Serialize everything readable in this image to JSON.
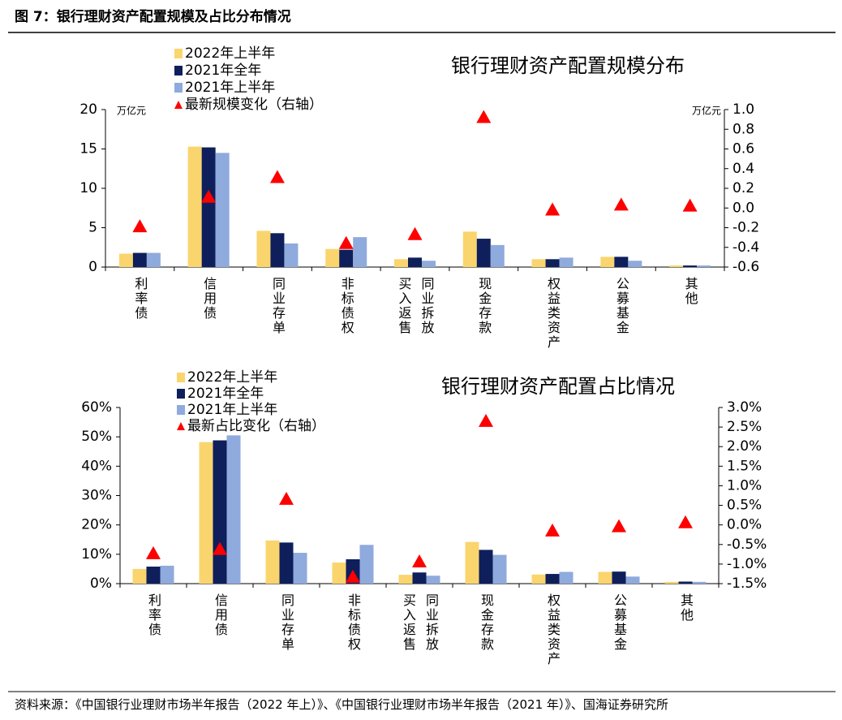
{
  "header": {
    "title": "图 7：银行理财资产配置规模及占比分布情况"
  },
  "chart_data": [
    {
      "type": "bar",
      "title": "银行理财资产配置规模分布",
      "ylabel": "万亿元",
      "y2label": "万亿元",
      "categories": [
        "利率债",
        "信用债",
        "同业存单",
        "非标债权",
        "买入返售 同业拆放",
        "现金存款",
        "权益类资产",
        "公募基金",
        "其他"
      ],
      "series": [
        {
          "name": "2022年上半年",
          "color": "#FAD56E",
          "values": [
            1.7,
            15.3,
            4.6,
            2.3,
            1.0,
            4.5,
            1.0,
            1.3,
            0.2
          ]
        },
        {
          "name": "2021年全年",
          "color": "#0E1F5B",
          "values": [
            1.8,
            15.2,
            4.3,
            2.2,
            1.2,
            3.6,
            1.0,
            1.3,
            0.2
          ]
        },
        {
          "name": "2021年上半年",
          "color": "#8FAADC",
          "values": [
            1.8,
            14.5,
            3.0,
            3.8,
            0.8,
            2.8,
            1.2,
            0.8,
            0.2
          ]
        },
        {
          "name": "最新规模变化（右轴）",
          "color": "#FF0000",
          "marker": "triangle",
          "axis": "y2",
          "values": [
            -0.18,
            0.12,
            0.32,
            -0.35,
            -0.26,
            0.93,
            -0.01,
            0.04,
            0.03
          ]
        }
      ],
      "ylim": [
        0,
        20
      ],
      "yticks": [
        0,
        5,
        10,
        15,
        20
      ],
      "y2lim": [
        -0.6,
        1.0
      ],
      "y2ticks": [
        -0.6,
        -0.4,
        -0.2,
        {
          "value": 0,
          "label": "0.0"
        },
        0.2,
        0.4,
        0.6,
        0.8,
        {
          "value": 1,
          "label": "1.0"
        }
      ]
    },
    {
      "type": "bar",
      "title": "银行理财资产配置占比情况",
      "categories": [
        "利率债",
        "信用债",
        "同业存单",
        "非标债权",
        "买入返售 同业拆放",
        "现金存款",
        "权益类资产",
        "公募基金",
        "其他"
      ],
      "series": [
        {
          "name": "2022年上半年",
          "color": "#FAD56E",
          "values": [
            5.0,
            48.2,
            14.7,
            7.2,
            3.0,
            14.2,
            3.1,
            4.0,
            0.6
          ]
        },
        {
          "name": "2021年全年",
          "color": "#0E1F5B",
          "values": [
            5.8,
            48.8,
            14.0,
            8.3,
            3.8,
            11.5,
            3.3,
            4.1,
            0.7
          ]
        },
        {
          "name": "2021年上半年",
          "color": "#8FAADC",
          "values": [
            6.1,
            50.5,
            10.5,
            13.2,
            2.7,
            9.8,
            4.0,
            2.4,
            0.6
          ]
        },
        {
          "name": "最新占比变化（右轴）",
          "color": "#FF0000",
          "marker": "triangle",
          "axis": "y2",
          "values": [
            -0.71,
            -0.6,
            0.68,
            -1.31,
            -0.92,
            2.67,
            -0.13,
            -0.02,
            0.08
          ]
        }
      ],
      "ylim": [
        0,
        60
      ],
      "yticks": [
        {
          "value": 0,
          "label": "0%"
        },
        {
          "value": 10,
          "label": "10%"
        },
        {
          "value": 20,
          "label": "20%"
        },
        {
          "value": 30,
          "label": "30%"
        },
        {
          "value": 40,
          "label": "40%"
        },
        {
          "value": 50,
          "label": "50%"
        },
        {
          "value": 60,
          "label": "60%"
        }
      ],
      "y2lim": [
        -1.5,
        3.0
      ],
      "y2ticks": [
        {
          "value": -1.5,
          "label": "-1.5%"
        },
        {
          "value": -1,
          "label": "-1.0%"
        },
        {
          "value": -0.5,
          "label": "-0.5%"
        },
        {
          "value": 0,
          "label": "0.0%"
        },
        {
          "value": 0.5,
          "label": "0.5%"
        },
        {
          "value": 1,
          "label": "1.0%"
        },
        {
          "value": 1.5,
          "label": "1.5%"
        },
        {
          "value": 2,
          "label": "2.0%"
        },
        {
          "value": 2.5,
          "label": "2.5%"
        },
        {
          "value": 3,
          "label": "3.0%"
        }
      ]
    }
  ],
  "footer": {
    "source": "资料来源：《中国银行业理财市场半年报告（2022 年上）》、《中国银行业理财市场半年报告（2021 年）》、国海证券研究所"
  }
}
